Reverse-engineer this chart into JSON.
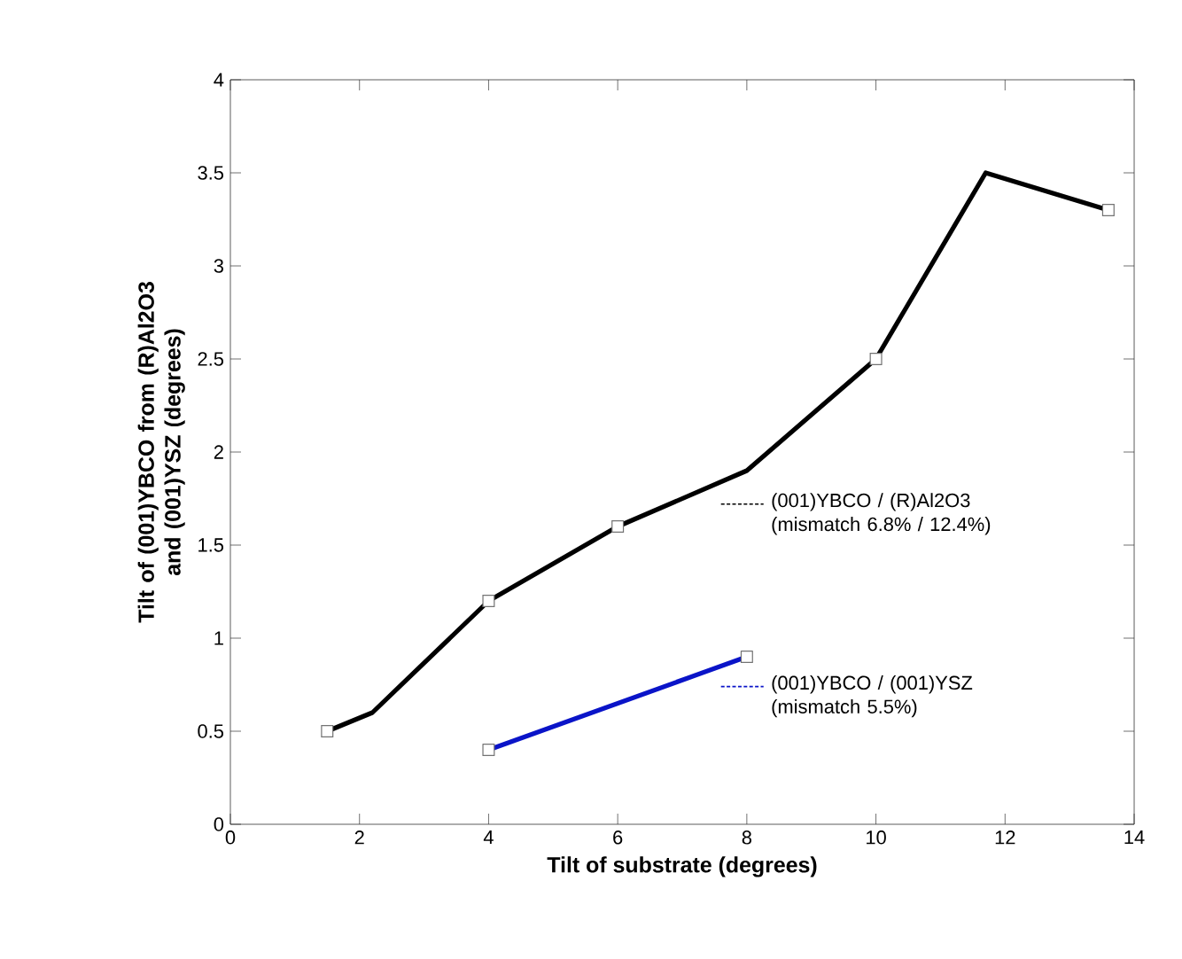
{
  "chart_data": {
    "type": "line",
    "xlabel": "Tilt of substrate (degrees)",
    "ylabel": "Tilt of (001)YBCO from (R)Al2O3 and (001)YSZ  (degrees)",
    "xlim": [
      0,
      14
    ],
    "xticks": [
      0,
      2,
      4,
      6,
      8,
      10,
      12,
      14
    ],
    "ylim": [
      0,
      4
    ],
    "yticks": [
      0,
      0.5,
      1,
      1.5,
      2,
      2.5,
      3,
      3.5,
      4
    ],
    "marker": "square",
    "legend": "right",
    "series": [
      {
        "name": "(001)YBCO / (R)Al2O3 (mismatch 6.8% / 12.4%)",
        "color": "#000000",
        "marker": "none",
        "x": [
          1.5,
          2.2,
          4,
          6,
          8,
          10,
          11.7,
          13.6
        ],
        "values": [
          0.5,
          0.6,
          1.2,
          1.6,
          1.9,
          2.5,
          3.5,
          3.3
        ]
      },
      {
        "type": "scatter",
        "color": "#ffffff",
        "x": [
          1.5,
          4,
          6,
          10,
          13.6
        ],
        "values": [
          0.5,
          1.2,
          1.6,
          2.5,
          3.3
        ]
      },
      {
        "name": "(001)YBCO / (001)YSZ (mismatch 5.5%)",
        "color": "#0a14c8",
        "x": [
          4,
          8
        ],
        "values": [
          0.4,
          0.9
        ]
      }
    ]
  }
}
